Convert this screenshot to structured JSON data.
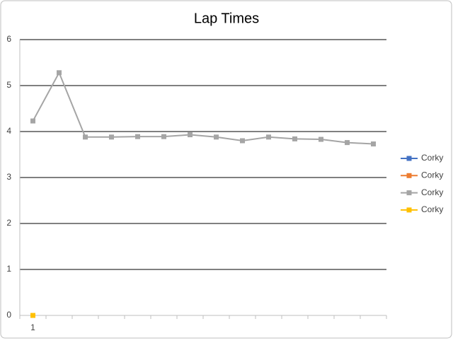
{
  "chart_data": {
    "type": "line",
    "title": "Lap Times",
    "categories": [
      "1",
      null,
      null,
      null,
      null,
      null,
      null,
      null,
      null,
      null,
      null,
      null,
      null,
      null
    ],
    "series": [
      {
        "name": "Corky",
        "color": "#4472c4",
        "values": [
          0,
          null,
          null,
          null,
          null,
          null,
          null,
          null,
          null,
          null,
          null,
          null,
          null,
          null
        ]
      },
      {
        "name": "Corky",
        "color": "#ed7d31",
        "values": [
          0,
          null,
          null,
          null,
          null,
          null,
          null,
          null,
          null,
          null,
          null,
          null,
          null,
          null
        ]
      },
      {
        "name": "Corky",
        "color": "#a5a5a5",
        "values": [
          4.23,
          5.28,
          3.88,
          3.88,
          3.89,
          3.89,
          3.93,
          3.88,
          3.8,
          3.88,
          3.84,
          3.83,
          3.76,
          3.73
        ]
      },
      {
        "name": "Corky",
        "color": "#ffc000",
        "values": [
          0,
          null,
          null,
          null,
          null,
          null,
          null,
          null,
          null,
          null,
          null,
          null,
          null,
          null
        ]
      }
    ],
    "ylim": [
      0,
      6
    ],
    "yticks": [
      0,
      1,
      2,
      3,
      4,
      5,
      6
    ],
    "grid": true,
    "legend": "right"
  }
}
